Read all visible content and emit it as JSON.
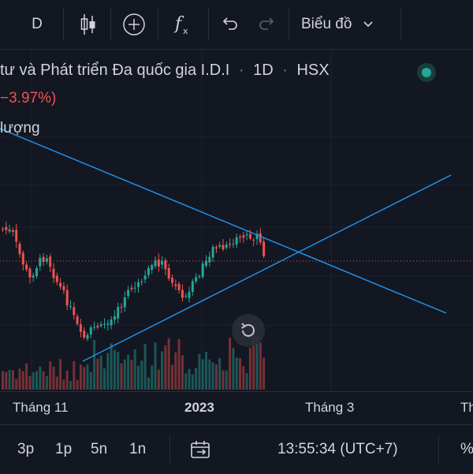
{
  "toolbar": {
    "interval": "D",
    "chart_menu_label": "Biểu đồ",
    "icons": [
      "candles-icon",
      "add-indicator-icon",
      "fx-icon",
      "undo-icon",
      "redo-icon",
      "chevron-down-icon"
    ]
  },
  "legend": {
    "title": "tư và Phát triển Đa quốc gia I.D.I",
    "interval": "1D",
    "exchange": "HSX",
    "change": "−3.97%)",
    "volume_label": "lượng",
    "status_color": "#26a69a"
  },
  "colors": {
    "up": "#26a69a",
    "down": "#ef5350",
    "trendline": "#2196f3",
    "background": "#131722"
  },
  "xaxis": {
    "labels": [
      "Tháng 11",
      "2023",
      "Tháng 3",
      "Th"
    ]
  },
  "bottombar": {
    "ranges": [
      "3p",
      "1p",
      "5n",
      "1n"
    ],
    "clock": "13:55:34 (UTC+7)",
    "percent": "%"
  },
  "icons": {
    "reset": "reset-chart-icon",
    "goto": "go-to-date-icon"
  }
}
